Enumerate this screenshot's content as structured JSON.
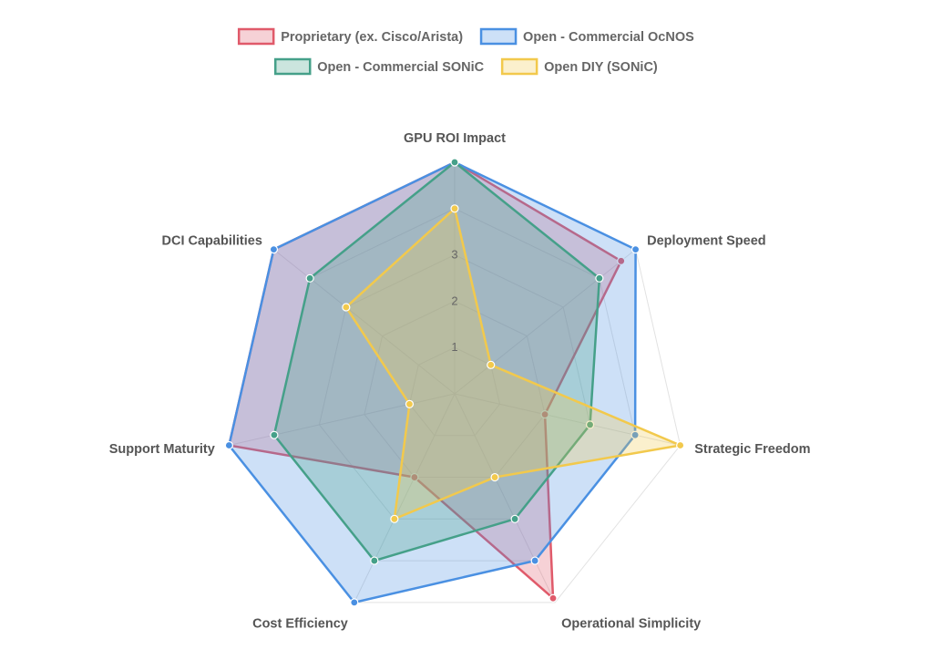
{
  "chart_data": {
    "type": "radar",
    "axes": [
      "GPU ROI Impact",
      "Deployment Speed",
      "Strategic Freedom",
      "Operational Simplicity",
      "Cost Efficiency",
      "Support Maturity",
      "DCI Capabilities"
    ],
    "r_range": [
      0,
      5
    ],
    "ticks": [
      "1",
      "2",
      "3"
    ],
    "grid": true,
    "legend_position": "top",
    "series": [
      {
        "name": "Proprietary (ex. Cisco/Arista)",
        "color": "#e05a6a",
        "fill": "rgba(224,90,106,0.28)",
        "values": [
          5,
          4.6,
          2.0,
          4.9,
          2.0,
          5.0,
          5.0
        ]
      },
      {
        "name": "Open - Commercial OcNOS",
        "color": "#4a90e2",
        "fill": "rgba(74,144,226,0.28)",
        "values": [
          5,
          5.0,
          4.0,
          4.0,
          5.0,
          5.0,
          5.0
        ]
      },
      {
        "name": "Open - Commercial SONiC",
        "color": "#45a089",
        "fill": "rgba(69,160,137,0.28)",
        "values": [
          5,
          4.0,
          3.0,
          3.0,
          4.0,
          4.0,
          4.0
        ]
      },
      {
        "name": "Open DIY (SONiC)",
        "color": "#f2c94c",
        "fill": "rgba(242,201,76,0.28)",
        "values": [
          4,
          1.0,
          5.0,
          2.0,
          3.0,
          1.0,
          3.0
        ]
      }
    ]
  }
}
